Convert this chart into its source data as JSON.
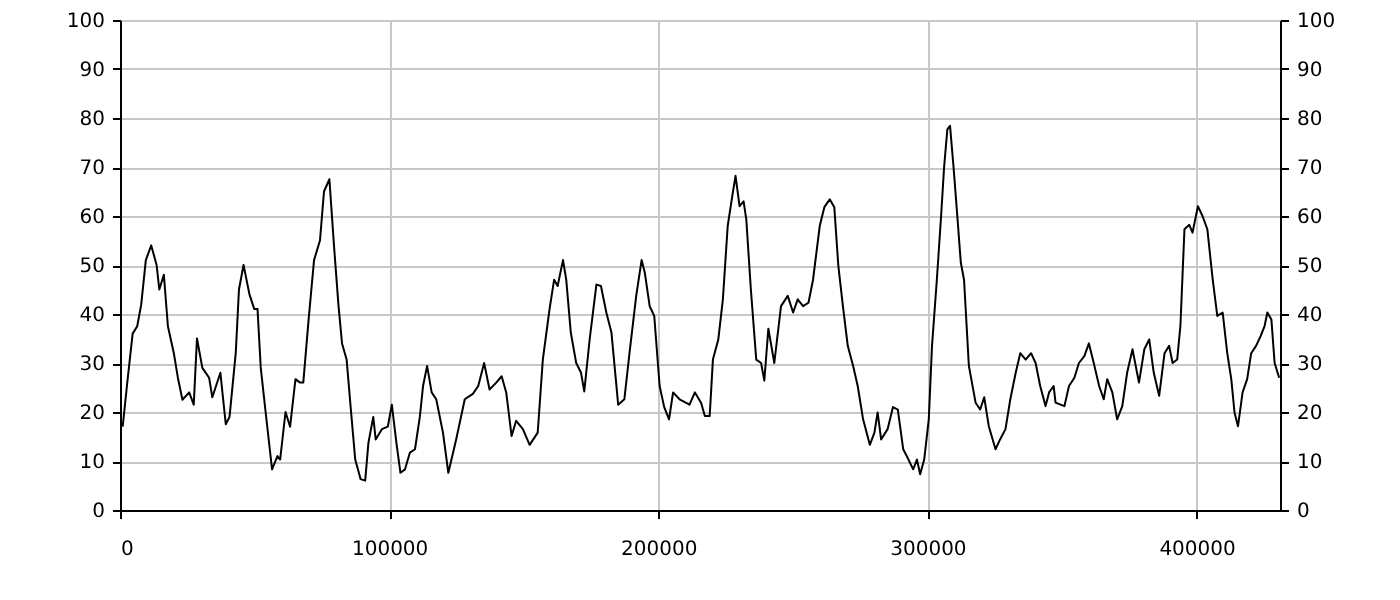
{
  "chart_data": {
    "type": "line",
    "xlim": [
      0,
      431000
    ],
    "xticks": [
      0,
      100000,
      200000,
      300000,
      400000
    ],
    "ylim": [
      0,
      100
    ],
    "yticks": [
      0,
      10,
      20,
      30,
      40,
      50,
      60,
      70,
      80,
      90,
      100
    ],
    "y2lim": [
      0,
      100
    ],
    "y2ticks": [
      0,
      10,
      20,
      30,
      40,
      50,
      60,
      70,
      80,
      90,
      100
    ],
    "grid": true,
    "marker": "none",
    "line_style": "solid",
    "x": [
      1000,
      2700,
      4700,
      6400,
      7900,
      9600,
      11600,
      13600,
      14600,
      16300,
      17800,
      20000,
      21500,
      23200,
      25700,
      27400,
      28600,
      30600,
      33100,
      34300,
      37300,
      39300,
      40700,
      43000,
      44200,
      45900,
      48100,
      49900,
      51100,
      52300,
      54100,
      56500,
      58500,
      59500,
      61500,
      63200,
      65200,
      66900,
      68100,
      70100,
      72100,
      74300,
      75800,
      77800,
      79500,
      81200,
      82500,
      84200,
      85700,
      87400,
      89400,
      91100,
      92300,
      94100,
      95000,
      97300,
      99500,
      101000,
      102700,
      104200,
      105900,
      107700,
      109600,
      111400,
      112600,
      114100,
      115800,
      117500,
      120000,
      122000,
      124900,
      128100,
      131100,
      133100,
      135300,
      137300,
      139800,
      141800,
      143500,
      145500,
      147200,
      149700,
      152200,
      155200,
      157100,
      159600,
      161300,
      162600,
      164600,
      165800,
      167500,
      169500,
      171300,
      172500,
      174500,
      177000,
      178700,
      180700,
      182600,
      185100,
      187400,
      189300,
      191800,
      193800,
      195000,
      196800,
      198500,
      200500,
      202200,
      204000,
      205500,
      207900,
      211600,
      213600,
      215900,
      217300,
      219100,
      220300,
      222300,
      224000,
      225800,
      227300,
      228700,
      230200,
      231700,
      232700,
      234400,
      236400,
      238200,
      239400,
      240900,
      243100,
      245600,
      248100,
      250100,
      251800,
      253800,
      255800,
      257500,
      260000,
      261700,
      263700,
      265400,
      266900,
      268600,
      270400,
      272400,
      274100,
      276100,
      278600,
      280300,
      281500,
      282800,
      285200,
      287200,
      289000,
      291000,
      292700,
      294700,
      296100,
      297300,
      298800,
      300500,
      301700,
      303500,
      305000,
      306200,
      307400,
      308400,
      309700,
      311200,
      312400,
      313600,
      315400,
      317900,
      319600,
      321100,
      322800,
      325300,
      327000,
      329000,
      330800,
      332800,
      334500,
      336500,
      338500,
      340200,
      341900,
      343900,
      345200,
      346900,
      347600,
      350900,
      352600,
      354600,
      356300,
      358300,
      360000,
      361800,
      363800,
      365500,
      366800,
      368700,
      370500,
      372400,
      374200,
      376200,
      377400,
      378600,
      380600,
      382400,
      384100,
      386100,
      388100,
      389800,
      391100,
      392800,
      394000,
      395500,
      397300,
      398500,
      400500,
      402200,
      404000,
      406000,
      407700,
      409700,
      411400,
      412900,
      414100,
      415400,
      417100,
      418800,
      420300,
      422100,
      423800,
      425300,
      426300,
      427800,
      429000,
      430700
    ],
    "series": [
      {
        "color": "#000000",
        "values": [
          17,
          26,
          36,
          37.5,
          42,
          51,
          54,
          50,
          45,
          48,
          37.5,
          32,
          27,
          22.5,
          24,
          21.5,
          35,
          29,
          27,
          23,
          28,
          17.5,
          19,
          32,
          45,
          50,
          44,
          41,
          41,
          29,
          20,
          8.3,
          11,
          10.3,
          20,
          17,
          26.7,
          26,
          26,
          39,
          51,
          55,
          65,
          67.5,
          54,
          41.6,
          34,
          30.7,
          21,
          10.3,
          6.3,
          6,
          13.7,
          19,
          14.4,
          16.5,
          17,
          21.5,
          13.7,
          7.6,
          8.3,
          11.7,
          12.4,
          19,
          25.3,
          29.4,
          24,
          22.6,
          15.8,
          7.6,
          14.4,
          22.6,
          23.7,
          25.3,
          30,
          24.6,
          26,
          27.3,
          24,
          15.1,
          18.2,
          16.5,
          13.3,
          15.8,
          30.7,
          41,
          47,
          45.7,
          51,
          47,
          36.2,
          30,
          28,
          24.2,
          34.8,
          46,
          45.7,
          40.3,
          36.2,
          21.5,
          22.6,
          32,
          43.7,
          51,
          48.4,
          41.6,
          39.6,
          25.3,
          21,
          18.5,
          24,
          22.6,
          21.5,
          24,
          21.9,
          19.2,
          19.2,
          30.7,
          34.8,
          43,
          58,
          63.4,
          68.2,
          62,
          63,
          59.3,
          45,
          30.7,
          30,
          26.4,
          37,
          30,
          41.6,
          43.7,
          40.3,
          43,
          41.6,
          42.3,
          47,
          58,
          61.8,
          63.4,
          61.8,
          49.8,
          41.6,
          33.5,
          29.4,
          25.3,
          18.5,
          13.3,
          15.8,
          19.9,
          14.4,
          16.5,
          21,
          20.5,
          12.4,
          10.6,
          8.3,
          10.3,
          7.3,
          10.3,
          18.5,
          33.5,
          47,
          59.3,
          70,
          77.7,
          78.4,
          70,
          59.3,
          50.5,
          47,
          29.4,
          21.9,
          20.5,
          23,
          17.1,
          12.4,
          14.4,
          16.5,
          22.6,
          28,
          32,
          30.7,
          32,
          30,
          25.3,
          21.2,
          24,
          25.3,
          21.9,
          21.2,
          25.3,
          27,
          30,
          31.4,
          34,
          30,
          25.3,
          22.6,
          26.7,
          24,
          18.5,
          21.2,
          28,
          32.8,
          29.4,
          26,
          32.8,
          34.8,
          28,
          23.3,
          32,
          33.5,
          30,
          30.7,
          37.6,
          57.3,
          58.2,
          56.6,
          62,
          60,
          57.3,
          47,
          39.6,
          40.3,
          32,
          26.7,
          19.9,
          17.1,
          24,
          26.7,
          32,
          33.5,
          35.5,
          37.6,
          40.3,
          38.9,
          30,
          27
        ]
      }
    ]
  }
}
